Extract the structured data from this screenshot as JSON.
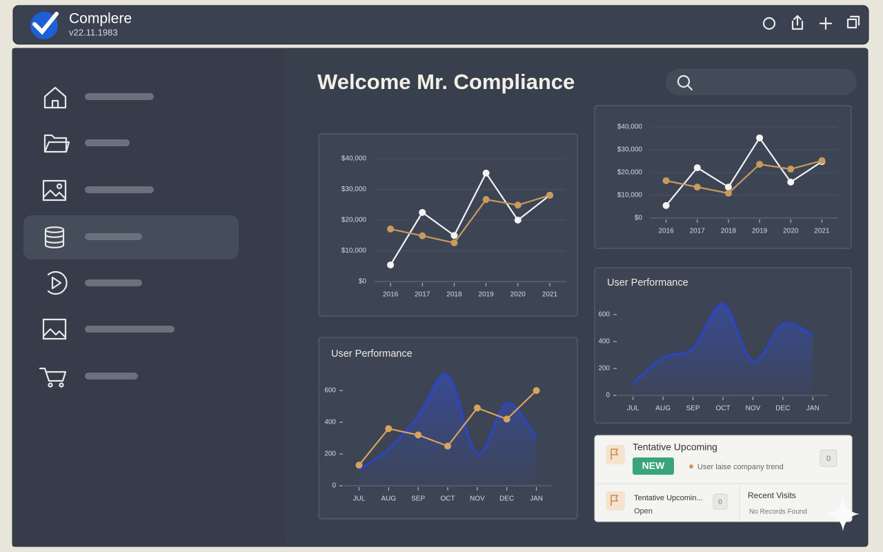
{
  "header": {
    "app_name": "Complere",
    "version": "v22.11.1983"
  },
  "page": {
    "title": "Welcome Mr. Compliance"
  },
  "chart_data": [
    {
      "type": "line",
      "categories": [
        "2016",
        "2017",
        "2018",
        "2019",
        "2020",
        "2021"
      ],
      "series": [
        {
          "color": "#f4f4f4",
          "values": [
            5400,
            22500,
            15000,
            35300,
            20000,
            28100
          ]
        },
        {
          "color": "#c99a5b",
          "values": [
            17100,
            14900,
            12600,
            26700,
            24900,
            28100
          ]
        }
      ],
      "ylim": [
        0,
        40000
      ],
      "yticks": [
        {
          "value": 0,
          "label": "$0"
        },
        {
          "value": 10000,
          "label": "$10,000"
        },
        {
          "value": 20000,
          "label": "$20,000"
        },
        {
          "value": 30000,
          "label": "$30,000"
        },
        {
          "value": 40000,
          "label": "$40,000"
        }
      ],
      "grid": true
    },
    {
      "type": "line",
      "categories": [
        "2016",
        "2017",
        "2018",
        "2019",
        "2020",
        "2021"
      ],
      "series": [
        {
          "color": "#f4f4f4",
          "values": [
            5500,
            22100,
            13600,
            35200,
            15800,
            24800
          ]
        },
        {
          "color": "#c99a5b",
          "values": [
            16400,
            13600,
            10900,
            23600,
            21500,
            25200
          ]
        }
      ],
      "ylim": [
        0,
        40000
      ],
      "yticks": [
        {
          "value": 0,
          "label": "$0"
        },
        {
          "value": 10000,
          "label": "$10,000"
        },
        {
          "value": 20000,
          "label": "$20,000"
        },
        {
          "value": 30000,
          "label": "$30,000"
        },
        {
          "value": 40000,
          "label": "$40,000"
        }
      ],
      "grid": true
    },
    {
      "type": "line",
      "title": "User Performance",
      "categories": [
        "JUL",
        "AUG",
        "SEP",
        "OCT",
        "NOV",
        "DEC",
        "JAN"
      ],
      "series": [
        {
          "color": "#2a45c8",
          "smooth": true,
          "area": true,
          "values": [
            100,
            230,
            440,
            700,
            200,
            520,
            300
          ]
        },
        {
          "color": "#d9a35f",
          "values": [
            130,
            360,
            320,
            250,
            490,
            420,
            600
          ]
        }
      ],
      "ylim": [
        0,
        800
      ],
      "yticks": [
        0,
        200,
        400,
        600
      ],
      "grid": false
    },
    {
      "type": "line",
      "title": "User Performance",
      "categories": [
        "JUL",
        "AUG",
        "SEP",
        "OCT",
        "NOV",
        "DEC",
        "JAN"
      ],
      "series": [
        {
          "color": "#2a45c8",
          "smooth": true,
          "area": true,
          "values": [
            90,
            280,
            350,
            680,
            250,
            530,
            450
          ]
        }
      ],
      "ylim": [
        0,
        800
      ],
      "yticks": [
        0,
        200,
        400,
        600
      ],
      "grid": false
    }
  ],
  "cards": {
    "upcoming": {
      "title": "Tentative Upcoming",
      "badge": "NEW",
      "note": "User laise company trend",
      "count": "0"
    },
    "upcoming_small": {
      "title": "Tentative Upcomin...",
      "status": "Open",
      "count": "0"
    },
    "recent": {
      "title": "Recent Visits",
      "empty": "No Records Found"
    }
  }
}
